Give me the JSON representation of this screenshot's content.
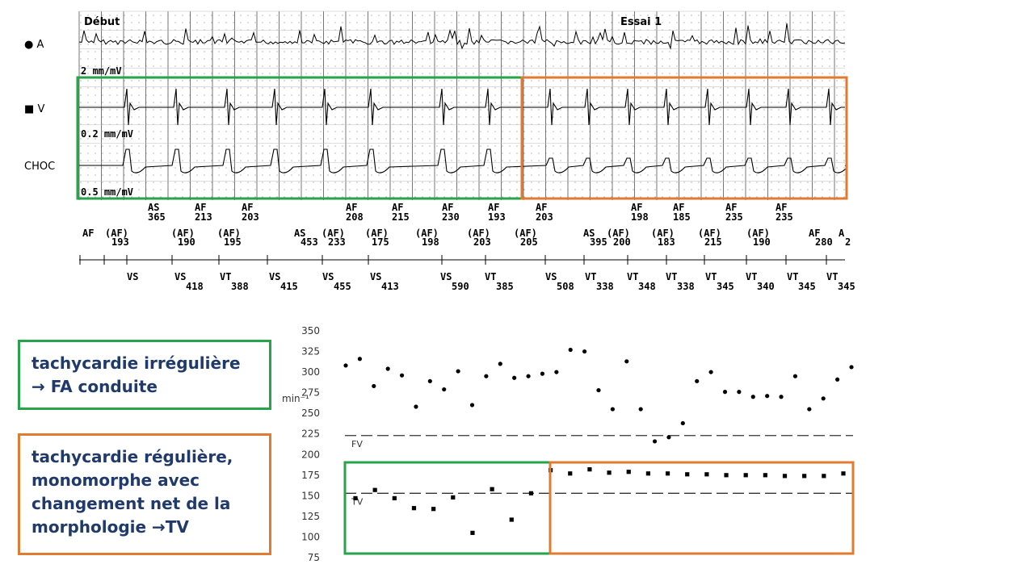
{
  "strip": {
    "label_start": "Début",
    "label_essai": "Essai 1",
    "channels": [
      {
        "marker": "●",
        "name": "A"
      },
      {
        "marker": "■",
        "name": "V"
      },
      {
        "marker": "",
        "name": "CHOC"
      }
    ],
    "gains": [
      "2 mm/mV",
      "0.2 mm/mV",
      "0.5 mm/mV"
    ],
    "atrial_markers": [
      {
        "code": "AS",
        "value": "365"
      },
      {
        "code": "AF",
        "value": "213"
      },
      {
        "code": "AF",
        "value": "203"
      },
      {
        "code": "AF",
        "value": "208"
      },
      {
        "code": "AF",
        "value": "215"
      },
      {
        "code": "AF",
        "value": "230"
      },
      {
        "code": "AF",
        "value": "193"
      },
      {
        "code": "AF",
        "value": "203"
      },
      {
        "code": "AF",
        "value": "198"
      },
      {
        "code": "AF",
        "value": "185"
      },
      {
        "code": "AF",
        "value": "235"
      },
      {
        "code": "AF",
        "value": "235"
      }
    ],
    "marker_row2": [
      {
        "code": "AF",
        "value": ""
      },
      {
        "code": "(AF)",
        "value": "193"
      },
      {
        "code": "(AF)",
        "value": "190"
      },
      {
        "code": "(AF)",
        "value": "195"
      },
      {
        "code": "AS",
        "value": "453"
      },
      {
        "code": "(AF)",
        "value": "233"
      },
      {
        "code": "(AF)",
        "value": "175"
      },
      {
        "code": "(AF)",
        "value": "198"
      },
      {
        "code": "(AF)",
        "value": "203"
      },
      {
        "code": "(AF)",
        "value": "205"
      },
      {
        "code": "AS",
        "value": "395"
      },
      {
        "code": "(AF)",
        "value": "200"
      },
      {
        "code": "(AF)",
        "value": "183"
      },
      {
        "code": "(AF)",
        "value": "215"
      },
      {
        "code": "(AF)",
        "value": "190"
      },
      {
        "code": "AF",
        "value": "280"
      },
      {
        "code": "A",
        "value": "2"
      }
    ],
    "ventricular_markers": [
      {
        "code": "VS",
        "value": ""
      },
      {
        "code": "VS",
        "value": "418"
      },
      {
        "code": "VT",
        "value": "388"
      },
      {
        "code": "VS",
        "value": "415"
      },
      {
        "code": "VS",
        "value": "455"
      },
      {
        "code": "VS",
        "value": "413"
      },
      {
        "code": "VS",
        "value": "590"
      },
      {
        "code": "VT",
        "value": "385"
      },
      {
        "code": "VS",
        "value": "508"
      },
      {
        "code": "VT",
        "value": "338"
      },
      {
        "code": "VT",
        "value": "348"
      },
      {
        "code": "VT",
        "value": "338"
      },
      {
        "code": "VT",
        "value": "345"
      },
      {
        "code": "VT",
        "value": "340"
      },
      {
        "code": "VT",
        "value": "345"
      },
      {
        "code": "VT",
        "value": "345"
      }
    ]
  },
  "annotations": {
    "green": "tachycardie irrégulière\n→ FA conduite",
    "orange": "tachycardie régulière,\nmonomorphe avec\nchangement net de la\nmorphologie →TV"
  },
  "plot": {
    "ylabel": "min⁻¹",
    "yticks": [
      75,
      100,
      125,
      150,
      175,
      200,
      225,
      250,
      275,
      300,
      325,
      350
    ],
    "ylim": [
      75,
      350
    ],
    "fv_label": "FV",
    "fv_value": 223,
    "tv_label": "TV",
    "tv_value": 153,
    "atrial_points": [
      308,
      316,
      283,
      304,
      296,
      258,
      289,
      279,
      301,
      260,
      295,
      310,
      293,
      295,
      298,
      300,
      327,
      325,
      278,
      255,
      313,
      255,
      216,
      221,
      238,
      289,
      300,
      276,
      276,
      270,
      271,
      270,
      295,
      255,
      268,
      291,
      306
    ],
    "ventricular_points": [
      147,
      157,
      147,
      135,
      134,
      148,
      105,
      158,
      121,
      153,
      181,
      177,
      182,
      178,
      179,
      177,
      177,
      176,
      176,
      175,
      175,
      175,
      174,
      174,
      174,
      177
    ],
    "colors": {
      "green": "#27a34a",
      "orange": "#e07b32",
      "text": "#1f3a6b"
    }
  }
}
